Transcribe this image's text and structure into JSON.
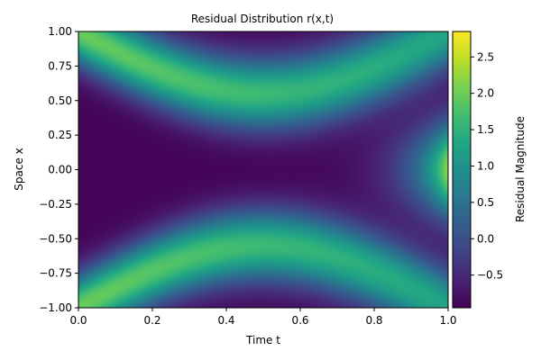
{
  "chart_data": {
    "type": "heatmap",
    "title": "Residual Distribution r(x,t)",
    "xlabel": "Time t",
    "ylabel": "Space x",
    "colorbar_label": "Residual Magnitude",
    "colormap": "viridis",
    "xlim": [
      0.0,
      1.0
    ],
    "ylim": [
      -1.0,
      1.0
    ],
    "value_range": [
      -0.95,
      2.85
    ],
    "x_ticks": [
      0.0,
      0.2,
      0.4,
      0.6,
      0.8,
      1.0
    ],
    "x_tick_labels": [
      "0.0",
      "0.2",
      "0.4",
      "0.6",
      "0.8",
      "1.0"
    ],
    "y_ticks": [
      1.0,
      0.75,
      0.5,
      0.25,
      0.0,
      -0.25,
      -0.5,
      -0.75,
      -1.0
    ],
    "y_tick_labels": [
      "1.00",
      "0.75",
      "0.50",
      "0.25",
      "0.00",
      "−0.25",
      "−0.50",
      "−0.75",
      "−1.00"
    ],
    "colorbar_ticks": [
      2.5,
      2.0,
      1.5,
      1.0,
      0.5,
      0.0,
      -0.5
    ],
    "colorbar_tick_labels": [
      "2.5",
      "2.0",
      "1.5",
      "1.0",
      "0.5",
      "0.0",
      "−0.5"
    ],
    "grid": false
  }
}
